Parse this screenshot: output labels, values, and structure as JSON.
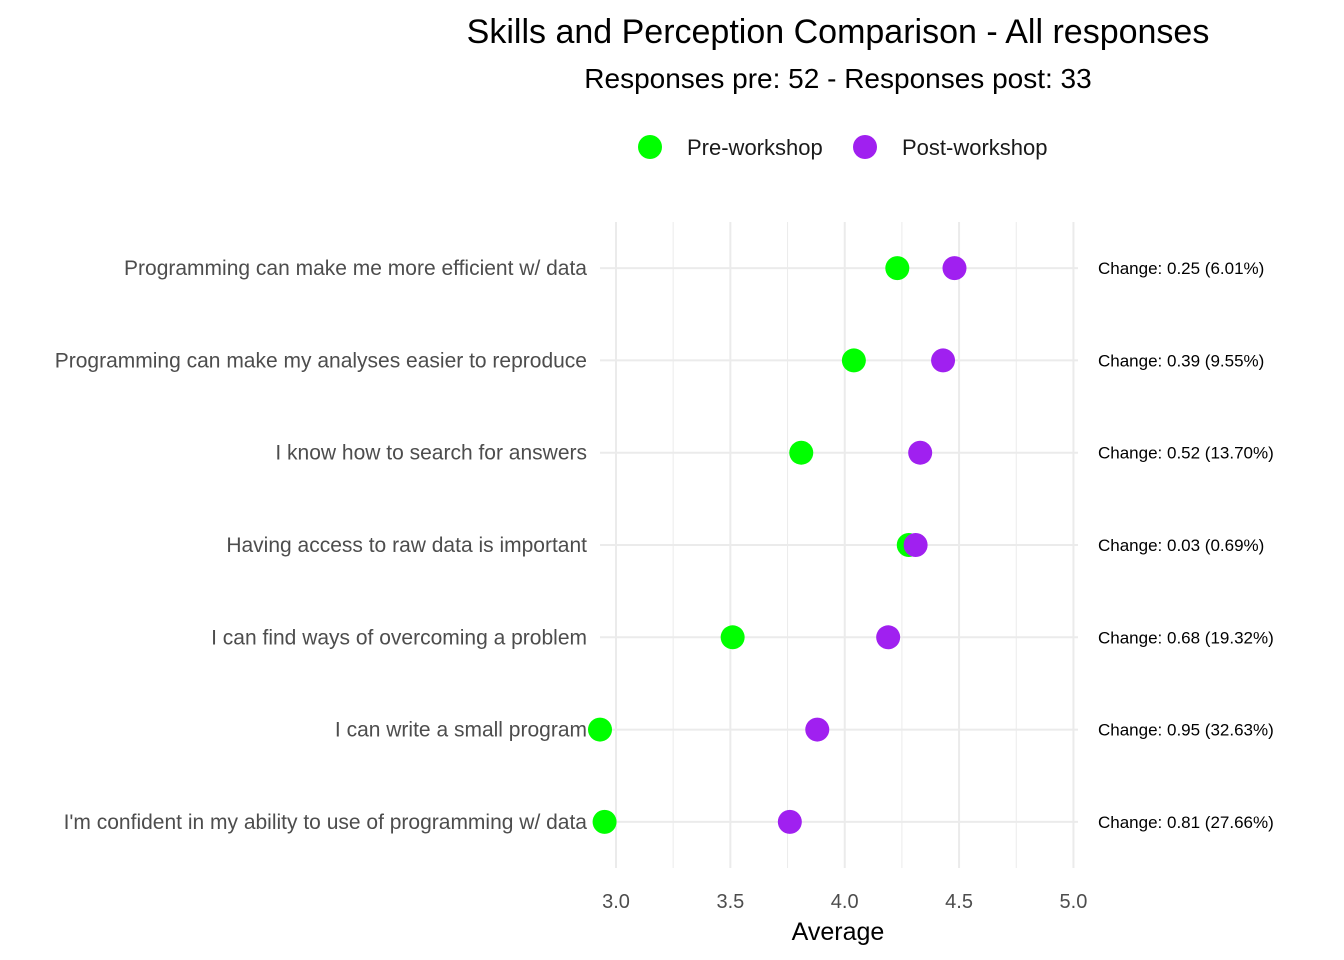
{
  "chart_data": {
    "type": "scatter",
    "title": "Skills and Perception Comparison - All responses",
    "subtitle": "Responses pre: 52 - Responses post: 33",
    "xlabel": "Average",
    "ylabel": "",
    "xlim": [
      2.93,
      5.02
    ],
    "x_ticks": [
      "3.0",
      "3.5",
      "4.0",
      "4.5",
      "5.0"
    ],
    "x_tick_values": [
      3.0,
      3.5,
      4.0,
      4.5,
      5.0
    ],
    "grid": true,
    "legend_position": "top",
    "categories": [
      "Programming can make me more efficient w/ data",
      "Programming can make my analyses easier to reproduce",
      "I know how to search for answers",
      "Having access to raw data is important",
      "I can find ways of overcoming a problem",
      "I can write a small program",
      "I'm confident in my ability to use of programming w/ data"
    ],
    "series": [
      {
        "name": "Pre-workshop",
        "color": "#00ff00",
        "values": [
          4.23,
          4.04,
          3.81,
          4.28,
          3.51,
          2.93,
          2.95
        ]
      },
      {
        "name": "Post-workshop",
        "color": "#a020f0",
        "values": [
          4.48,
          4.43,
          4.33,
          4.31,
          4.19,
          3.88,
          3.76
        ]
      }
    ],
    "annotations": [
      "Change: 0.25 (6.01%)",
      "Change: 0.39 (9.55%)",
      "Change: 0.52 (13.70%)",
      "Change: 0.03 (0.69%)",
      "Change: 0.68 (19.32%)",
      "Change: 0.95 (32.63%)",
      "Change: 0.81 (27.66%)"
    ]
  }
}
